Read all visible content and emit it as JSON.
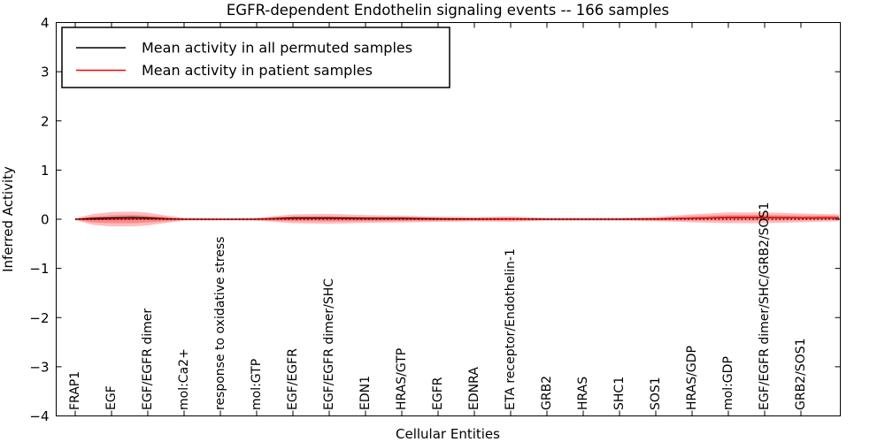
{
  "chart_data": {
    "type": "line",
    "title": "EGFR-dependent Endothelin signaling events -- 166 samples",
    "xlabel": "Cellular Entities",
    "ylabel": "Inferred Activity",
    "ylim": [
      -4,
      4
    ],
    "grid": false,
    "legend_position": "upper left",
    "yticks": [
      "4",
      "3",
      "2",
      "1",
      "0",
      "−1",
      "−2",
      "−3",
      "−4"
    ],
    "ytick_values": [
      4,
      3,
      2,
      1,
      0,
      -1,
      -2,
      -3,
      -4
    ],
    "categories": [
      "FRAP1",
      "EGF",
      "EGF/EGFR dimer",
      "mol:Ca2+",
      "response to oxidative stress",
      "mol:GTP",
      "EGF/EGFR",
      "EGF/EGFR dimer/SHC",
      "EDN1",
      "HRAS/GTP",
      "EGFR",
      "EDNRA",
      "ETA receptor/Endothelin-1",
      "GRB2",
      "HRAS",
      "SHC1",
      "SOS1",
      "HRAS/GDP",
      "mol:GDP",
      "EGF/EGFR dimer/SHC/GRB2/SOS1",
      "GRB2/SOS1"
    ],
    "x": [
      0,
      0.49,
      1,
      1.59,
      2,
      2.56,
      3,
      4,
      5,
      6,
      7,
      8,
      9,
      10,
      11,
      12,
      13,
      14,
      15,
      16,
      17,
      18,
      19,
      20,
      21.05
    ],
    "series": [
      {
        "name": "Mean activity in all permuted samples",
        "key": "permuted_mean",
        "color": "#000000",
        "values": [
          0,
          0.018,
          0.027,
          0.036,
          0.027,
          0.009,
          0,
          0,
          0,
          0.027,
          0.027,
          0.018,
          0.018,
          0.009,
          0.004,
          0.005,
          0,
          0,
          0,
          0.005,
          0.018,
          0.036,
          0.036,
          0.027,
          0.027
        ]
      },
      {
        "name": "Mean activity in patient samples",
        "key": "patient_mean",
        "color": "#ff0000",
        "values": [
          0,
          -0.005,
          0,
          0.005,
          0.005,
          0,
          0,
          -0.003,
          0,
          0.01,
          0.01,
          0.005,
          0.005,
          0,
          0,
          0.003,
          0,
          0,
          0,
          0.003,
          0.018,
          0.03,
          0.03,
          0.027,
          0.03
        ]
      }
    ],
    "bands": {
      "patient_outer_halfwidth": [
        0.02,
        0.11,
        0.145,
        0.15,
        0.13,
        0.07,
        0.03,
        0.02,
        0.03,
        0.09,
        0.1,
        0.08,
        0.07,
        0.055,
        0.045,
        0.055,
        0.03,
        0.03,
        0.03,
        0.045,
        0.08,
        0.11,
        0.11,
        0.09,
        0.07
      ],
      "patient_inner_halfwidth": [
        0.008,
        0.06,
        0.08,
        0.085,
        0.07,
        0.04,
        0.015,
        0.01,
        0.015,
        0.05,
        0.055,
        0.045,
        0.04,
        0.03,
        0.025,
        0.03,
        0.015,
        0.015,
        0.015,
        0.025,
        0.045,
        0.06,
        0.06,
        0.05,
        0.04
      ],
      "permuted_halfwidth": [
        0.008,
        0.02,
        0.03,
        0.035,
        0.03,
        0.015,
        0.01,
        0.008,
        0.01,
        0.025,
        0.025,
        0.02,
        0.02,
        0.015,
        0.012,
        0.015,
        0.01,
        0.01,
        0.01,
        0.012,
        0.02,
        0.03,
        0.03,
        0.025,
        0.02
      ]
    },
    "zero_line": {
      "value": 0,
      "style": "dotted",
      "color": "#000000"
    },
    "colors": {
      "patient_band": "#fa5a5a",
      "permuted_band": "#b4b4b4",
      "patient_line": "#ff0000",
      "permuted_line": "#000000",
      "frame": "#000000"
    },
    "legend": [
      {
        "label": "Mean activity in all permuted samples",
        "color": "#000000"
      },
      {
        "label": "Mean activity in patient samples",
        "color": "#ff0000"
      }
    ]
  }
}
